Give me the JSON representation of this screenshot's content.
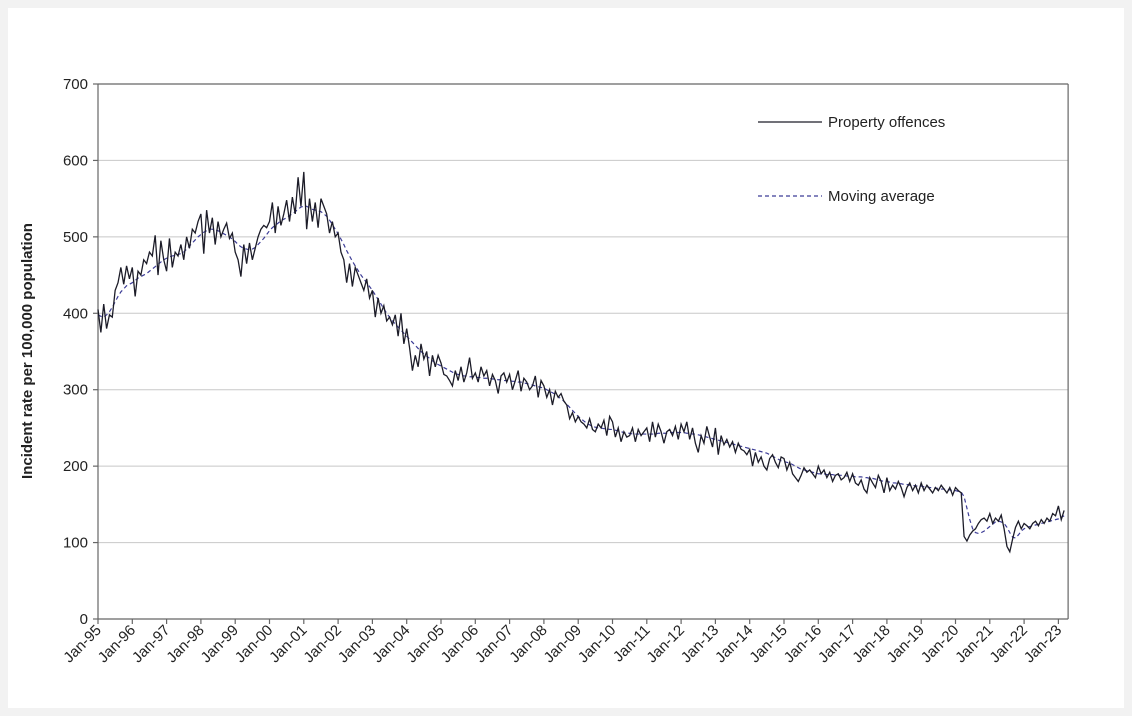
{
  "chart_data": {
    "type": "line",
    "y_label": "Incident rate per 100,000 population",
    "ylim": [
      0,
      700
    ],
    "yticks": [
      0,
      100,
      200,
      300,
      400,
      500,
      600,
      700
    ],
    "grid": true,
    "legend": "top-right",
    "categories": [
      "Jan-95",
      null,
      null,
      null,
      null,
      null,
      null,
      null,
      null,
      null,
      null,
      null,
      "Jan-96",
      null,
      null,
      null,
      null,
      null,
      null,
      null,
      null,
      null,
      null,
      null,
      "Jan-97",
      null,
      null,
      null,
      null,
      null,
      null,
      null,
      null,
      null,
      null,
      null,
      "Jan-98",
      null,
      null,
      null,
      null,
      null,
      null,
      null,
      null,
      null,
      null,
      null,
      "Jan-99",
      null,
      null,
      null,
      null,
      null,
      null,
      null,
      null,
      null,
      null,
      null,
      "Jan-00",
      null,
      null,
      null,
      null,
      null,
      null,
      null,
      null,
      null,
      null,
      null,
      "Jan-01",
      null,
      null,
      null,
      null,
      null,
      null,
      null,
      null,
      null,
      null,
      null,
      "Jan-02",
      null,
      null,
      null,
      null,
      null,
      null,
      null,
      null,
      null,
      null,
      null,
      "Jan-03",
      null,
      null,
      null,
      null,
      null,
      null,
      null,
      null,
      null,
      null,
      null,
      "Jan-04",
      null,
      null,
      null,
      null,
      null,
      null,
      null,
      null,
      null,
      null,
      null,
      "Jan-05",
      null,
      null,
      null,
      null,
      null,
      null,
      null,
      null,
      null,
      null,
      null,
      "Jan-06",
      null,
      null,
      null,
      null,
      null,
      null,
      null,
      null,
      null,
      null,
      null,
      "Jan-07",
      null,
      null,
      null,
      null,
      null,
      null,
      null,
      null,
      null,
      null,
      null,
      "Jan-08",
      null,
      null,
      null,
      null,
      null,
      null,
      null,
      null,
      null,
      null,
      null,
      "Jan-09",
      null,
      null,
      null,
      null,
      null,
      null,
      null,
      null,
      null,
      null,
      null,
      "Jan-10",
      null,
      null,
      null,
      null,
      null,
      null,
      null,
      null,
      null,
      null,
      null,
      "Jan-11",
      null,
      null,
      null,
      null,
      null,
      null,
      null,
      null,
      null,
      null,
      null,
      "Jan-12",
      null,
      null,
      null,
      null,
      null,
      null,
      null,
      null,
      null,
      null,
      null,
      "Jan-13",
      null,
      null,
      null,
      null,
      null,
      null,
      null,
      null,
      null,
      null,
      null,
      "Jan-14",
      null,
      null,
      null,
      null,
      null,
      null,
      null,
      null,
      null,
      null,
      null,
      "Jan-15",
      null,
      null,
      null,
      null,
      null,
      null,
      null,
      null,
      null,
      null,
      null,
      "Jan-16",
      null,
      null,
      null,
      null,
      null,
      null,
      null,
      null,
      null,
      null,
      null,
      "Jan-17",
      null,
      null,
      null,
      null,
      null,
      null,
      null,
      null,
      null,
      null,
      null,
      "Jan-18",
      null,
      null,
      null,
      null,
      null,
      null,
      null,
      null,
      null,
      null,
      null,
      "Jan-19",
      null,
      null,
      null,
      null,
      null,
      null,
      null,
      null,
      null,
      null,
      null,
      "Jan-20",
      null,
      null,
      null,
      null,
      null,
      null,
      null,
      null,
      null,
      null,
      null,
      "Jan-21",
      null,
      null,
      null,
      null,
      null,
      null,
      null,
      null,
      null,
      null,
      null,
      "Jan-22",
      null,
      null,
      null,
      null,
      null,
      null,
      null,
      null,
      null,
      null,
      null,
      "Jan-23",
      null,
      null
    ],
    "series": [
      {
        "name": "Property offences",
        "color": "#1c1c28",
        "dash": "solid",
        "values": [
          405,
          375,
          412,
          380,
          398,
          395,
          430,
          440,
          460,
          438,
          462,
          445,
          460,
          422,
          455,
          450,
          470,
          465,
          480,
          475,
          502,
          450,
          495,
          470,
          455,
          498,
          460,
          480,
          475,
          490,
          470,
          500,
          485,
          510,
          505,
          520,
          530,
          478,
          535,
          505,
          525,
          490,
          520,
          500,
          510,
          518,
          498,
          505,
          480,
          470,
          448,
          490,
          465,
          492,
          470,
          485,
          500,
          510,
          515,
          512,
          520,
          545,
          505,
          540,
          515,
          530,
          548,
          520,
          552,
          530,
          578,
          540,
          585,
          510,
          550,
          520,
          545,
          512,
          550,
          540,
          530,
          505,
          520,
          500,
          505,
          480,
          470,
          440,
          465,
          435,
          460,
          450,
          440,
          430,
          445,
          420,
          430,
          395,
          420,
          400,
          410,
          390,
          395,
          385,
          398,
          370,
          400,
          360,
          380,
          355,
          325,
          345,
          330,
          360,
          340,
          350,
          318,
          345,
          330,
          345,
          335,
          320,
          318,
          312,
          305,
          325,
          312,
          330,
          310,
          322,
          342,
          315,
          322,
          310,
          330,
          318,
          325,
          305,
          320,
          312,
          295,
          318,
          322,
          310,
          320,
          300,
          312,
          325,
          298,
          315,
          310,
          300,
          305,
          318,
          290,
          312,
          305,
          290,
          300,
          280,
          298,
          290,
          295,
          285,
          280,
          262,
          270,
          258,
          265,
          258,
          255,
          250,
          262,
          248,
          245,
          255,
          250,
          260,
          240,
          265,
          258,
          238,
          250,
          232,
          245,
          238,
          240,
          250,
          232,
          248,
          240,
          245,
          250,
          232,
          258,
          238,
          255,
          245,
          230,
          245,
          248,
          240,
          252,
          235,
          255,
          245,
          258,
          235,
          250,
          230,
          218,
          240,
          230,
          252,
          238,
          225,
          250,
          215,
          240,
          228,
          235,
          225,
          232,
          218,
          230,
          222,
          220,
          215,
          222,
          200,
          218,
          205,
          212,
          200,
          195,
          210,
          215,
          205,
          198,
          212,
          210,
          195,
          205,
          190,
          185,
          180,
          188,
          198,
          192,
          195,
          190,
          185,
          200,
          190,
          195,
          185,
          192,
          180,
          188,
          190,
          182,
          185,
          192,
          180,
          190,
          178,
          175,
          182,
          170,
          165,
          185,
          178,
          172,
          188,
          180,
          165,
          185,
          168,
          175,
          170,
          180,
          172,
          160,
          172,
          178,
          168,
          175,
          165,
          178,
          168,
          175,
          170,
          165,
          172,
          168,
          175,
          170,
          165,
          172,
          162,
          172,
          168,
          165,
          108,
          102,
          110,
          115,
          118,
          125,
          130,
          132,
          128,
          138,
          125,
          132,
          128,
          136,
          118,
          95,
          88,
          105,
          120,
          128,
          118,
          125,
          122,
          118,
          125,
          128,
          122,
          130,
          125,
          132,
          128,
          138,
          135,
          148,
          130,
          142
        ]
      },
      {
        "name": "Moving average",
        "color": "#3c3c96",
        "dash": "dashed",
        "values": [
          398,
          396,
          395,
          398,
          402,
          408,
          415,
          422,
          428,
          432,
          436,
          438,
          440,
          443,
          446,
          448,
          450,
          452,
          455,
          458,
          461,
          464,
          467,
          470,
          472,
          474,
          475,
          476,
          477,
          478,
          480,
          484,
          488,
          492,
          496,
          500,
          503,
          506,
          508,
          510,
          510,
          509,
          508,
          506,
          504,
          502,
          500,
          497,
          494,
          490,
          487,
          485,
          484,
          483,
          484,
          486,
          490,
          494,
          498,
          503,
          508,
          512,
          515,
          518,
          521,
          523,
          525,
          528,
          530,
          533,
          536,
          539,
          540,
          540,
          538,
          536,
          535,
          534,
          533,
          530,
          527,
          522,
          516,
          510,
          504,
          497,
          490,
          482,
          475,
          468,
          462,
          456,
          450,
          445,
          440,
          435,
          430,
          424,
          418,
          412,
          406,
          400,
          395,
          390,
          386,
          382,
          378,
          374,
          370,
          366,
          362,
          358,
          354,
          350,
          347,
          344,
          341,
          338,
          335,
          333,
          331,
          329,
          327,
          325,
          323,
          321,
          320,
          319,
          318,
          318,
          317,
          317,
          316,
          316,
          316,
          315,
          315,
          315,
          314,
          314,
          313,
          313,
          312,
          312,
          312,
          311,
          311,
          310,
          310,
          309,
          308,
          307,
          306,
          305,
          304,
          303,
          302,
          300,
          298,
          296,
          294,
          291,
          288,
          285,
          281,
          277,
          273,
          269,
          265,
          262,
          259,
          256,
          254,
          252,
          251,
          250,
          250,
          249,
          249,
          248,
          248,
          247,
          246,
          245,
          244,
          243,
          243,
          242,
          242,
          242,
          242,
          242,
          242,
          242,
          242,
          242,
          243,
          243,
          243,
          243,
          244,
          244,
          244,
          244,
          244,
          244,
          243,
          243,
          242,
          242,
          241,
          240,
          239,
          238,
          237,
          236,
          235,
          234,
          233,
          232,
          231,
          230,
          229,
          228,
          227,
          226,
          225,
          224,
          223,
          222,
          221,
          220,
          219,
          218,
          217,
          215,
          213,
          211,
          209,
          207,
          206,
          205,
          204,
          202,
          200,
          198,
          196,
          195,
          194,
          193,
          192,
          191,
          190,
          190,
          190,
          189,
          189,
          189,
          188,
          188,
          188,
          188,
          187,
          187,
          187,
          186,
          186,
          186,
          185,
          185,
          184,
          184,
          183,
          182,
          181,
          180,
          180,
          179,
          178,
          178,
          177,
          177,
          176,
          176,
          175,
          175,
          174,
          174,
          174,
          173,
          173,
          172,
          172,
          171,
          171,
          170,
          170,
          169,
          169,
          168,
          168,
          167,
          166,
          160,
          145,
          130,
          118,
          113,
          112,
          113,
          115,
          118,
          121,
          124,
          127,
          128,
          127,
          125,
          120,
          113,
          107,
          106,
          110,
          115,
          118,
          120,
          121,
          122,
          123,
          124,
          125,
          126,
          127,
          128,
          129,
          130,
          131,
          133,
          135
        ]
      }
    ]
  }
}
